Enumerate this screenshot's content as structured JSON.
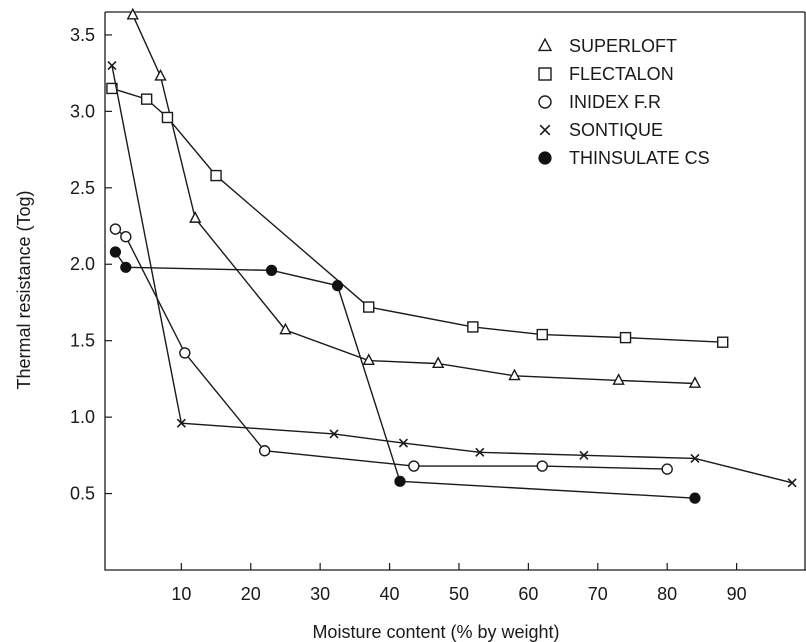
{
  "chart_data": {
    "type": "line",
    "title": "",
    "xlabel": "Moisture content (% by weight)",
    "ylabel": "Thermal resistance (Tog)",
    "xlim": [
      -1,
      100
    ],
    "ylim": [
      0,
      3.65
    ],
    "xticks": [
      10,
      20,
      30,
      40,
      50,
      60,
      70,
      80,
      90
    ],
    "xtick_labels": [
      "10",
      "20",
      "30",
      "40",
      "50",
      "60",
      "70",
      "80",
      "90"
    ],
    "yticks": [
      0.5,
      1.0,
      1.5,
      2.0,
      2.5,
      3.0,
      3.5
    ],
    "ytick_labels": [
      "0.5",
      "1.0",
      "1.5",
      "2.0",
      "2.5",
      "3.0",
      "3.5"
    ],
    "grid": false,
    "legend_position": "top-right",
    "series": [
      {
        "name": "SUPERLOFT",
        "marker": "triangle",
        "x": [
          3,
          7,
          12,
          25,
          37,
          47,
          58,
          73,
          84
        ],
        "y": [
          3.63,
          3.23,
          2.3,
          1.57,
          1.37,
          1.35,
          1.27,
          1.24,
          1.22
        ]
      },
      {
        "name": "FLECTALON",
        "marker": "square",
        "x": [
          0,
          5,
          8,
          15,
          37,
          52,
          62,
          74,
          88
        ],
        "y": [
          3.15,
          3.08,
          2.96,
          2.58,
          1.72,
          1.59,
          1.54,
          1.52,
          1.49
        ]
      },
      {
        "name": "INIDEX F.R",
        "marker": "circle-open",
        "x": [
          0.5,
          2,
          10.5,
          22,
          43.5,
          62,
          80
        ],
        "y": [
          2.23,
          2.18,
          1.42,
          0.78,
          0.68,
          0.68,
          0.66
        ]
      },
      {
        "name": "SONTIQUE",
        "marker": "cross",
        "x": [
          0,
          10,
          32,
          42,
          53,
          68,
          84,
          98
        ],
        "y": [
          3.3,
          0.96,
          0.89,
          0.83,
          0.77,
          0.75,
          0.73,
          0.57
        ]
      },
      {
        "name": "THINSULATE CS",
        "marker": "circle-filled",
        "x": [
          0.5,
          2,
          23,
          32.5,
          41.5,
          84
        ],
        "y": [
          2.08,
          1.98,
          1.96,
          1.86,
          0.58,
          0.47
        ]
      }
    ]
  }
}
